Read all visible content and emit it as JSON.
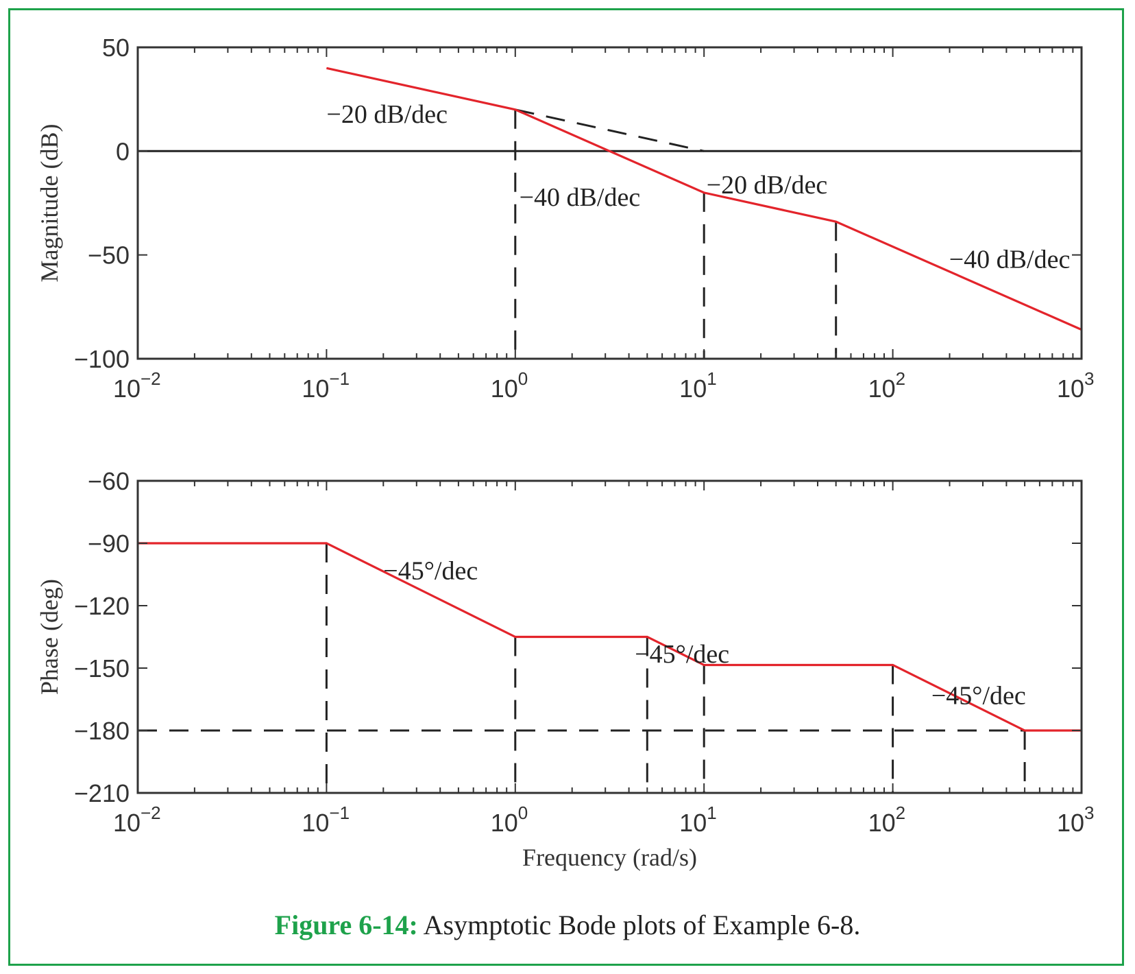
{
  "caption": {
    "label": "Figure 6-14:",
    "text": " Asymptotic Bode plots of Example 6-8."
  },
  "colors": {
    "frame": "#1ea24b",
    "asymptote": "#e3242b",
    "reference": "#222222",
    "axis": "#333333"
  },
  "chart_data": [
    {
      "type": "line",
      "id": "magnitude",
      "title": "",
      "xlabel": "",
      "ylabel": "Magnitude (dB)",
      "xscale": "log",
      "xlim": [
        0.01,
        1000
      ],
      "ylim": [
        -100,
        50
      ],
      "yticks": [
        50,
        0,
        -50,
        -100
      ],
      "yticklabels": [
        "50",
        "0",
        "−50",
        "−100"
      ],
      "xticks": [
        0.01,
        0.1,
        1,
        10,
        100,
        1000
      ],
      "xticklabels": [
        [
          "10",
          "−2"
        ],
        [
          "10",
          "−1"
        ],
        [
          "10",
          "0"
        ],
        [
          "10",
          "1"
        ],
        [
          "10",
          "2"
        ],
        [
          "10",
          "3"
        ]
      ],
      "grid": false,
      "series": [
        {
          "style": "solid-red",
          "x": [
            0.1,
            1,
            10,
            50,
            1000
          ],
          "y": [
            40,
            20,
            -20,
            -34,
            -86
          ]
        }
      ],
      "reference_lines": [
        {
          "style": "solid-black",
          "x": [
            0.01,
            1000
          ],
          "y": [
            0,
            0
          ]
        },
        {
          "style": "dashed",
          "x": [
            1,
            10
          ],
          "y": [
            20,
            0
          ]
        },
        {
          "style": "dashed",
          "x": [
            1,
            1
          ],
          "y": [
            20,
            -100
          ]
        },
        {
          "style": "dashed",
          "x": [
            10,
            10
          ],
          "y": [
            -20,
            -100
          ]
        },
        {
          "style": "dashed",
          "x": [
            50,
            50
          ],
          "y": [
            -34,
            -100
          ]
        }
      ],
      "annotations": [
        {
          "text": "−20 dB/dec",
          "x": 0.1,
          "y": 18,
          "anchor": "start"
        },
        {
          "text": "−40 dB/dec",
          "x": 1.05,
          "y": -22,
          "anchor": "start"
        },
        {
          "text": "−20 dB/dec",
          "x": 10.3,
          "y": -16,
          "anchor": "start"
        },
        {
          "text": "−40 dB/dec",
          "x": 870,
          "y": -52,
          "anchor": "end"
        }
      ]
    },
    {
      "type": "line",
      "id": "phase",
      "title": "",
      "xlabel": "Frequency (rad/s)",
      "ylabel": "Phase (deg)",
      "xscale": "log",
      "xlim": [
        0.01,
        1000
      ],
      "ylim": [
        -210,
        -60
      ],
      "yticks": [
        -60,
        -90,
        -120,
        -150,
        -180,
        -210
      ],
      "yticklabels": [
        "−60",
        "−90",
        "−120",
        "−150",
        "−180",
        "−210"
      ],
      "xticks": [
        0.01,
        0.1,
        1,
        10,
        100,
        1000
      ],
      "xticklabels": [
        [
          "10",
          "−2"
        ],
        [
          "10",
          "−1"
        ],
        [
          "10",
          "0"
        ],
        [
          "10",
          "1"
        ],
        [
          "10",
          "2"
        ],
        [
          "10",
          "3"
        ]
      ],
      "grid": false,
      "series": [
        {
          "style": "solid-red",
          "x": [
            0.01,
            0.1,
            1,
            5,
            10,
            100,
            500,
            1000
          ],
          "y": [
            -90,
            -90,
            -135,
            -135,
            -148.5,
            -148.5,
            -180,
            -180
          ]
        }
      ],
      "reference_lines": [
        {
          "style": "dashed",
          "x": [
            0.01,
            1000
          ],
          "y": [
            -180,
            -180
          ]
        },
        {
          "style": "dashed",
          "x": [
            0.1,
            0.1
          ],
          "y": [
            -90,
            -210
          ]
        },
        {
          "style": "dashed",
          "x": [
            1,
            1
          ],
          "y": [
            -135,
            -210
          ]
        },
        {
          "style": "dashed",
          "x": [
            5,
            5
          ],
          "y": [
            -135,
            -210
          ]
        },
        {
          "style": "dashed",
          "x": [
            10,
            10
          ],
          "y": [
            -148.5,
            -210
          ]
        },
        {
          "style": "dashed",
          "x": [
            100,
            100
          ],
          "y": [
            -148.5,
            -210
          ]
        },
        {
          "style": "dashed",
          "x": [
            500,
            500
          ],
          "y": [
            -180,
            -210
          ]
        }
      ],
      "annotations": [
        {
          "text": "−45°/dec",
          "x": 0.2,
          "y": -103,
          "anchor": "start"
        },
        {
          "text": "−45°/dec",
          "x": 4.3,
          "y": -143,
          "anchor": "start"
        },
        {
          "text": "−45°/dec",
          "x": 160,
          "y": -163,
          "anchor": "start"
        }
      ]
    }
  ]
}
